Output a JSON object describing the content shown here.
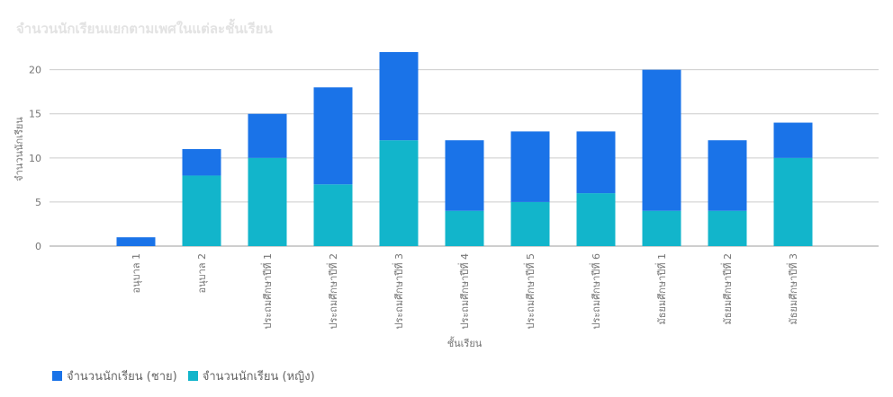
{
  "chart_data": {
    "type": "bar",
    "stacked": true,
    "title": "จำนวนนักเรียนแยกตามเพศในแต่ละชั้นเรียน",
    "xlabel": "ชั้นเรียน",
    "ylabel": "จำนวนนักเรียน",
    "ylim": [
      0,
      22
    ],
    "yticks": [
      0,
      5,
      10,
      15,
      20
    ],
    "grid": true,
    "legend_position": "bottom-left",
    "categories": [
      "อนุบาล 1",
      "อนุบาล 2",
      "ประถมศึกษาปีที่ 1",
      "ประถมศึกษาปีที่ 2",
      "ประถมศึกษาปีที่ 3",
      "ประถมศึกษาปีที่ 4",
      "ประถมศึกษาปีที่ 5",
      "ประถมศึกษาปีที่ 6",
      "มัธยมศึกษาปีที่ 1",
      "มัธยมศึกษาปีที่ 2",
      "มัธยมศึกษาปีที่ 3"
    ],
    "series": [
      {
        "name": "จำนวนนักเรียน (หญิง)",
        "color": "#12b5cb",
        "values": [
          0,
          8,
          10,
          7,
          12,
          4,
          5,
          6,
          4,
          4,
          10
        ]
      },
      {
        "name": "จำนวนนักเรียน (ชาย)",
        "color": "#1a73e8",
        "values": [
          1,
          3,
          5,
          11,
          10,
          8,
          8,
          7,
          16,
          8,
          4
        ]
      }
    ],
    "legend_order": [
      1,
      0
    ]
  }
}
